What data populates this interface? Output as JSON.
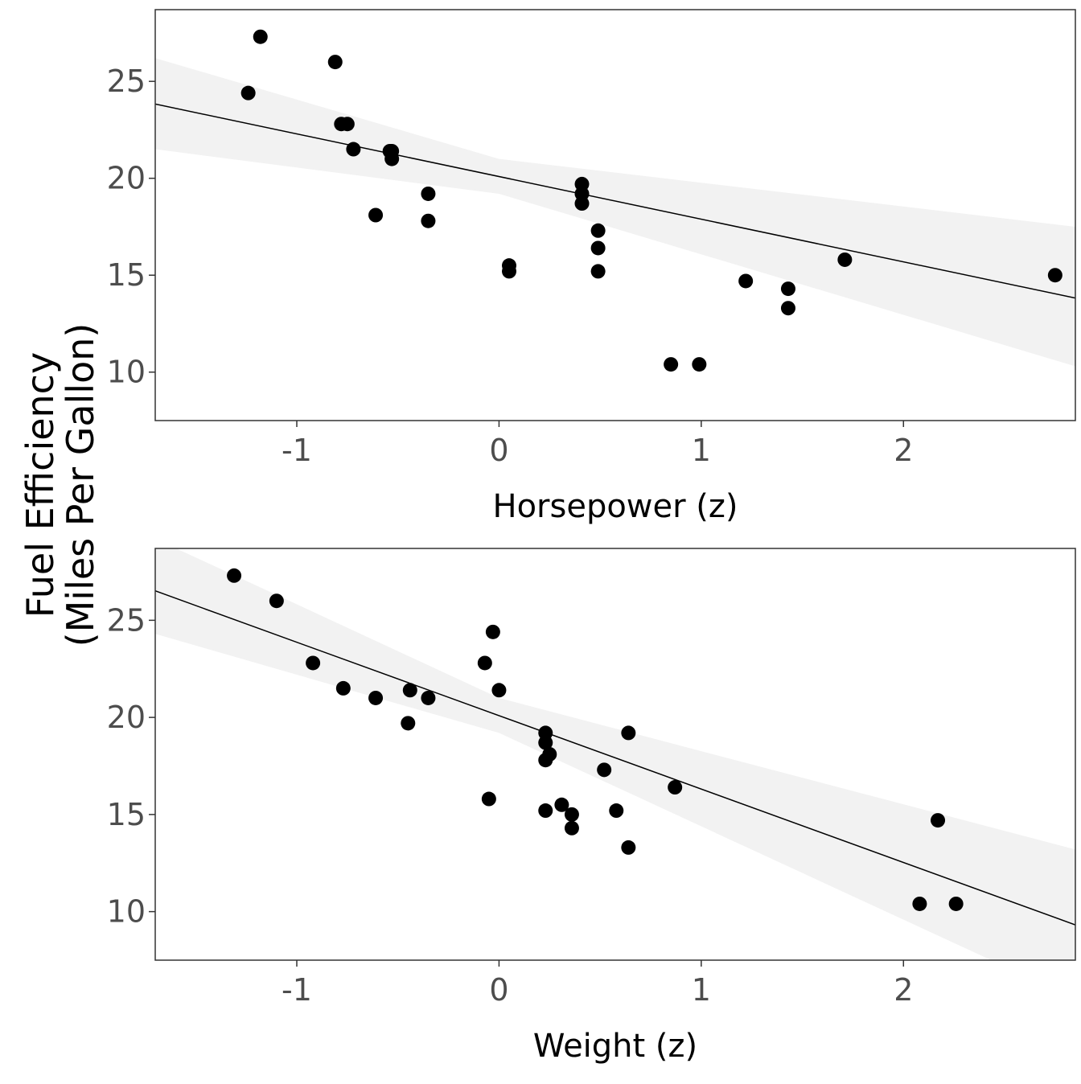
{
  "y_title_lines": [
    "Fuel Efficiency",
    "(Miles Per Gallon)"
  ],
  "chart_data": [
    {
      "type": "scatter",
      "xlabel": "Horsepower (z)",
      "xlim": [
        -1.7,
        2.85
      ],
      "ylim": [
        7.5,
        28.7
      ],
      "xticks": [
        -1,
        0,
        1,
        2
      ],
      "xtick_labels": [
        "-1",
        "0",
        "1",
        "2"
      ],
      "yticks": [
        10,
        15,
        20,
        25
      ],
      "ytick_labels": [
        "10",
        "15",
        "20",
        "25"
      ],
      "grid": false,
      "points": [
        {
          "x": -1.18,
          "y": 27.3
        },
        {
          "x": -0.81,
          "y": 26.0
        },
        {
          "x": -1.24,
          "y": 24.4
        },
        {
          "x": -0.78,
          "y": 22.8
        },
        {
          "x": -0.75,
          "y": 22.8
        },
        {
          "x": -0.72,
          "y": 21.5
        },
        {
          "x": -0.54,
          "y": 21.4
        },
        {
          "x": -0.53,
          "y": 21.4
        },
        {
          "x": -0.53,
          "y": 21.0
        },
        {
          "x": -0.61,
          "y": 18.1
        },
        {
          "x": -0.35,
          "y": 19.2
        },
        {
          "x": -0.35,
          "y": 17.8
        },
        {
          "x": 0.05,
          "y": 15.5
        },
        {
          "x": 0.05,
          "y": 15.2
        },
        {
          "x": 0.41,
          "y": 19.7
        },
        {
          "x": 0.41,
          "y": 19.2
        },
        {
          "x": 0.41,
          "y": 18.7
        },
        {
          "x": 0.49,
          "y": 17.3
        },
        {
          "x": 0.49,
          "y": 16.4
        },
        {
          "x": 0.49,
          "y": 15.2
        },
        {
          "x": 0.85,
          "y": 10.4
        },
        {
          "x": 0.99,
          "y": 10.4
        },
        {
          "x": 1.22,
          "y": 14.7
        },
        {
          "x": 1.43,
          "y": 14.3
        },
        {
          "x": 1.43,
          "y": 13.3
        },
        {
          "x": 1.71,
          "y": 15.8
        },
        {
          "x": 2.75,
          "y": 15.0
        }
      ],
      "fit": {
        "intercept": 20.09,
        "slope": -2.2
      },
      "band": [
        {
          "x": -1.7,
          "lower": 21.5,
          "upper": 26.2
        },
        {
          "x": 0.0,
          "lower": 19.2,
          "upper": 21.0
        },
        {
          "x": 2.85,
          "lower": 10.3,
          "upper": 17.5
        }
      ],
      "colors": {
        "points": "#000000",
        "fit_line": "#000000",
        "band": "#f2f2f2"
      }
    },
    {
      "type": "scatter",
      "xlabel": "Weight (z)",
      "xlim": [
        -1.7,
        2.85
      ],
      "ylim": [
        7.5,
        28.7
      ],
      "xticks": [
        -1,
        0,
        1,
        2
      ],
      "xtick_labels": [
        "-1",
        "0",
        "1",
        "2"
      ],
      "yticks": [
        10,
        15,
        20,
        25
      ],
      "ytick_labels": [
        "10",
        "15",
        "20",
        "25"
      ],
      "grid": false,
      "points": [
        {
          "x": -1.31,
          "y": 27.3
        },
        {
          "x": -1.1,
          "y": 26.0
        },
        {
          "x": -0.92,
          "y": 22.8
        },
        {
          "x": -0.77,
          "y": 21.5
        },
        {
          "x": -0.61,
          "y": 21.0
        },
        {
          "x": -0.45,
          "y": 19.7
        },
        {
          "x": -0.44,
          "y": 21.4
        },
        {
          "x": -0.35,
          "y": 21.0
        },
        {
          "x": -0.07,
          "y": 22.8
        },
        {
          "x": -0.03,
          "y": 24.4
        },
        {
          "x": 0.0,
          "y": 21.4
        },
        {
          "x": -0.05,
          "y": 15.8
        },
        {
          "x": 0.23,
          "y": 19.2
        },
        {
          "x": 0.23,
          "y": 18.7
        },
        {
          "x": 0.25,
          "y": 18.1
        },
        {
          "x": 0.23,
          "y": 17.8
        },
        {
          "x": 0.23,
          "y": 15.2
        },
        {
          "x": 0.31,
          "y": 15.5
        },
        {
          "x": 0.36,
          "y": 15.0
        },
        {
          "x": 0.36,
          "y": 14.3
        },
        {
          "x": 0.52,
          "y": 17.3
        },
        {
          "x": 0.58,
          "y": 15.2
        },
        {
          "x": 0.64,
          "y": 19.2
        },
        {
          "x": 0.64,
          "y": 13.3
        },
        {
          "x": 0.87,
          "y": 16.4
        },
        {
          "x": 2.08,
          "y": 10.4
        },
        {
          "x": 2.17,
          "y": 14.7
        },
        {
          "x": 2.26,
          "y": 10.4
        }
      ],
      "fit": {
        "intercept": 20.09,
        "slope": -3.78
      },
      "band": [
        {
          "x": -1.7,
          "lower": 24.3,
          "upper": 29.2
        },
        {
          "x": 0.0,
          "lower": 19.2,
          "upper": 21.0
        },
        {
          "x": 2.85,
          "lower": 5.5,
          "upper": 13.2
        }
      ],
      "colors": {
        "points": "#000000",
        "fit_line": "#000000",
        "band": "#f2f2f2"
      }
    }
  ]
}
